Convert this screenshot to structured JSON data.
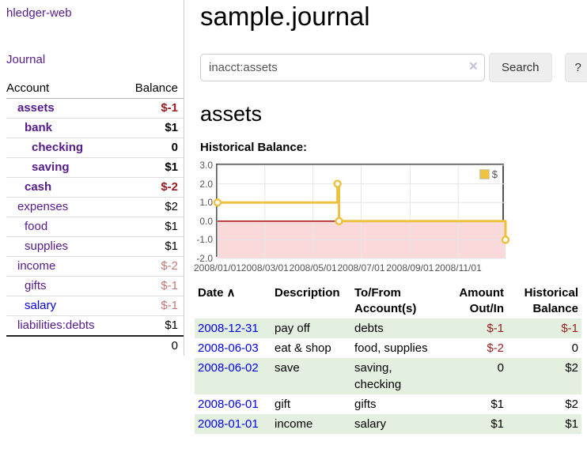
{
  "app": {
    "title": "hledger-web"
  },
  "nav": {
    "journal": "Journal"
  },
  "colors": {
    "link_visited_purple": "#551A8B",
    "link_blue": "#0000EE",
    "negative_strong_red": "#9a1c1e",
    "negative_soft_red": "#c47876",
    "row_stripe_green": "#e3efdf",
    "button_gray": "#eeeeee"
  },
  "sidebar": {
    "header": {
      "account": "Account",
      "balance": "Balance"
    },
    "accounts": [
      {
        "name": "assets",
        "balance": "$-1",
        "indent": 1,
        "bold": true,
        "link_style": "visited",
        "balance_style": "neg-strong"
      },
      {
        "name": "bank",
        "balance": "$1",
        "indent": 2,
        "bold": true,
        "link_style": "visited",
        "balance_style": "pos"
      },
      {
        "name": "checking",
        "balance": "0",
        "indent": 3,
        "bold": true,
        "link_style": "visited",
        "balance_style": "pos"
      },
      {
        "name": "saving",
        "balance": "$1",
        "indent": 3,
        "bold": true,
        "link_style": "visited",
        "balance_style": "pos"
      },
      {
        "name": "cash",
        "balance": "$-2",
        "indent": 2,
        "bold": true,
        "link_style": "visited",
        "balance_style": "neg-strong"
      },
      {
        "name": "expenses",
        "balance": "$2",
        "indent": 1,
        "bold": false,
        "link_style": "visited",
        "balance_style": "pos"
      },
      {
        "name": "food",
        "balance": "$1",
        "indent": 2,
        "bold": false,
        "link_style": "visited",
        "balance_style": "pos"
      },
      {
        "name": "supplies",
        "balance": "$1",
        "indent": 2,
        "bold": false,
        "link_style": "visited",
        "balance_style": "pos"
      },
      {
        "name": "income",
        "balance": "$-2",
        "indent": 1,
        "bold": false,
        "link_style": "visited",
        "balance_style": "neg-soft"
      },
      {
        "name": "gifts",
        "balance": "$-1",
        "indent": 2,
        "bold": false,
        "link_style": "visited",
        "balance_style": "neg-soft"
      },
      {
        "name": "salary",
        "balance": "$-1",
        "indent": 2,
        "bold": false,
        "link_style": "unvisited",
        "balance_style": "neg-soft"
      },
      {
        "name": "liabilities:debts",
        "balance": "$1",
        "indent": 1,
        "bold": false,
        "link_style": "visited",
        "balance_style": "pos"
      }
    ],
    "total": "0"
  },
  "header": {
    "title": "sample.journal"
  },
  "search": {
    "value": "inacct:assets",
    "clear_icon": "×",
    "button_label": "Search",
    "help_label": "?"
  },
  "account_page": {
    "heading": "assets",
    "chart_label": "Historical Balance:"
  },
  "chart_data": {
    "type": "line",
    "style": "step",
    "title": "Historical Balance",
    "legend": "$",
    "legend_position": "top-right",
    "grid": true,
    "x_range": [
      "2008-01-01",
      "2008-12-31"
    ],
    "ylim": [
      -2,
      3
    ],
    "yticks": [
      {
        "value": 3,
        "label": "3.0"
      },
      {
        "value": 2,
        "label": "2.0"
      },
      {
        "value": 1,
        "label": "1.0"
      },
      {
        "value": 0,
        "label": "0.0"
      },
      {
        "value": -1,
        "label": "-1.0"
      },
      {
        "value": -2,
        "label": "-2.0"
      }
    ],
    "xticks": [
      {
        "date": "2008-01-01",
        "label": "2008/01/01"
      },
      {
        "date": "2008-03-01",
        "label": "2008/03/01"
      },
      {
        "date": "2008-05-01",
        "label": "2008/05/01"
      },
      {
        "date": "2008-07-01",
        "label": "2008/07/01"
      },
      {
        "date": "2008-09-01",
        "label": "2008/09/01"
      },
      {
        "date": "2008-11-01",
        "label": "2008/11/01"
      }
    ],
    "series": [
      {
        "name": "$",
        "color": "#edc240",
        "points": [
          [
            "2008-01-01",
            1
          ],
          [
            "2008-06-01",
            2
          ],
          [
            "2008-06-03",
            0
          ],
          [
            "2008-12-31",
            -1
          ]
        ]
      }
    ],
    "negative_region": {
      "from": 0,
      "to": -2,
      "fill": "#f9d9d9",
      "line_color": "#a40000"
    },
    "grid_color": "#e6e6e6",
    "border_color": "#545454"
  },
  "transactions": {
    "headers": {
      "date": "Date",
      "sort_icon": "∧",
      "description": "Description",
      "accounts": "To/From Account(s)",
      "amount": "Amount Out/In",
      "balance": "Historical Balance"
    },
    "rows": [
      {
        "date": "2008-12-31",
        "description": "pay off",
        "accounts": "debts",
        "amount": "$-1",
        "amount_neg": true,
        "balance": "$-1",
        "balance_neg": true
      },
      {
        "date": "2008-06-03",
        "description": "eat & shop",
        "accounts": "food, supplies",
        "amount": "$-2",
        "amount_neg": true,
        "balance": "0",
        "balance_neg": false
      },
      {
        "date": "2008-06-02",
        "description": "save",
        "accounts": "saving, checking",
        "amount": "0",
        "amount_neg": false,
        "balance": "$2",
        "balance_neg": false
      },
      {
        "date": "2008-06-01",
        "description": "gift",
        "accounts": "gifts",
        "amount": "$1",
        "amount_neg": false,
        "balance": "$2",
        "balance_neg": false
      },
      {
        "date": "2008-01-01",
        "description": "income",
        "accounts": "salary",
        "amount": "$1",
        "amount_neg": false,
        "balance": "$1",
        "balance_neg": false
      }
    ]
  }
}
